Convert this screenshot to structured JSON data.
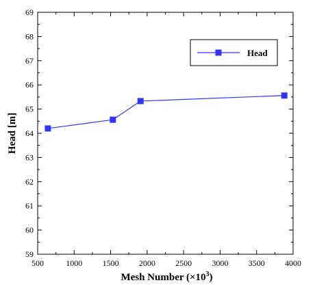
{
  "chart_data": {
    "type": "line",
    "x": [
      640,
      1530,
      1910,
      3880
    ],
    "series": [
      {
        "name": "Head",
        "values": [
          64.2,
          64.56,
          65.33,
          65.56
        ],
        "color": "#3333ff",
        "marker": "square"
      }
    ],
    "xlabel_main": "Mesh Number (×10",
    "xlabel_sup": "3",
    "xlabel_tail": ")",
    "ylabel": "Head [m]",
    "xlim": [
      500,
      4000
    ],
    "ylim": [
      59,
      69
    ],
    "xticks": [
      500,
      1000,
      1500,
      2000,
      2500,
      3000,
      3500,
      4000
    ],
    "yticks": [
      59,
      60,
      61,
      62,
      63,
      64,
      65,
      66,
      67,
      68,
      69
    ],
    "grid": false,
    "legend_position": "top-right",
    "axis_color": "#000000"
  }
}
